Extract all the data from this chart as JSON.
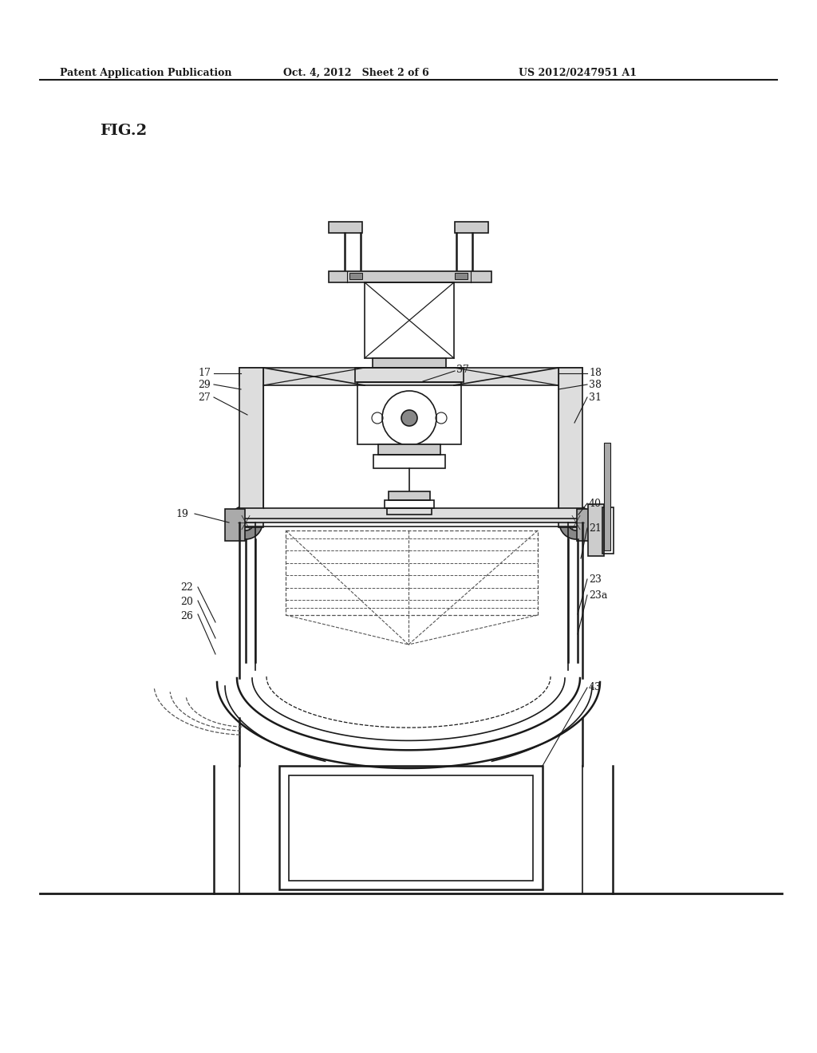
{
  "background_color": "#ffffff",
  "line_color": "#1a1a1a",
  "header_left": "Patent Application Publication",
  "header_mid": "Oct. 4, 2012   Sheet 2 of 6",
  "header_right": "US 2012/0247951 A1",
  "fig_label": "FIG.2",
  "label_fontsize": 9,
  "header_fontsize": 9,
  "fig_fontsize": 14
}
